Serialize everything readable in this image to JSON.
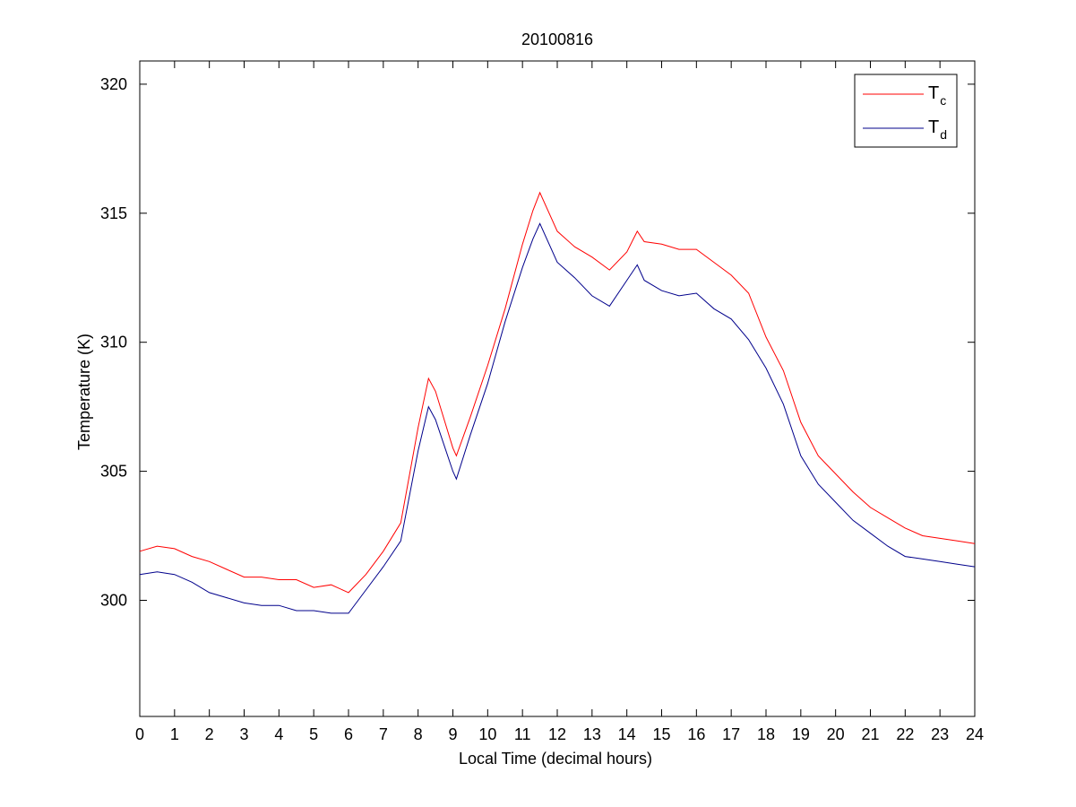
{
  "chart_data": {
    "type": "line",
    "title": "20100816",
    "xlabel": "Local Time (decimal hours)",
    "ylabel": "Temperature (K)",
    "xlim": [
      0,
      24
    ],
    "ylim": [
      295.5,
      320.9
    ],
    "x_ticks": [
      "0",
      "1",
      "2",
      "3",
      "4",
      "5",
      "6",
      "7",
      "8",
      "9",
      "10",
      "11",
      "12",
      "13",
      "14",
      "15",
      "16",
      "17",
      "18",
      "19",
      "20",
      "21",
      "22",
      "23",
      "24"
    ],
    "y_ticks": [
      "300",
      "305",
      "310",
      "315",
      "320"
    ],
    "grid": false,
    "legend_position": "top-right",
    "colors": {
      "Tc": "#ff0000",
      "Td": "#00008b"
    },
    "legend": [
      {
        "main": "T",
        "sub": "c",
        "color": "#ff0000"
      },
      {
        "main": "T",
        "sub": "d",
        "color": "#00008b"
      }
    ],
    "x": [
      0.0,
      0.5,
      1.0,
      1.5,
      2.0,
      2.5,
      3.0,
      3.5,
      4.0,
      4.5,
      5.0,
      5.5,
      6.0,
      6.5,
      7.0,
      7.5,
      8.0,
      8.3,
      8.5,
      9.0,
      9.1,
      9.5,
      10.0,
      10.5,
      11.0,
      11.3,
      11.5,
      12.0,
      12.5,
      13.0,
      13.5,
      14.0,
      14.3,
      14.5,
      15.0,
      15.5,
      16.0,
      16.5,
      17.0,
      17.5,
      18.0,
      18.5,
      19.0,
      19.5,
      20.0,
      20.5,
      21.0,
      21.5,
      22.0,
      22.5,
      23.0,
      23.5,
      24.0
    ],
    "series": [
      {
        "name": "T_c",
        "values": [
          301.9,
          302.1,
          302.0,
          301.7,
          301.5,
          301.2,
          300.9,
          300.9,
          300.8,
          300.8,
          300.5,
          300.6,
          300.3,
          301.0,
          301.9,
          303.0,
          306.7,
          308.6,
          308.1,
          305.9,
          305.6,
          307.1,
          309.1,
          311.3,
          313.8,
          315.1,
          315.8,
          314.3,
          313.7,
          313.3,
          312.8,
          313.5,
          314.3,
          313.9,
          313.8,
          313.6,
          313.6,
          313.1,
          312.6,
          311.9,
          310.2,
          308.9,
          306.9,
          305.6,
          304.9,
          304.2,
          303.6,
          303.2,
          302.8,
          302.5,
          302.4,
          302.3,
          302.2
        ]
      },
      {
        "name": "T_d",
        "values": [
          301.0,
          301.1,
          301.0,
          300.7,
          300.3,
          300.1,
          299.9,
          299.8,
          299.8,
          299.6,
          299.6,
          299.5,
          299.5,
          300.4,
          301.3,
          302.3,
          305.8,
          307.5,
          307.0,
          305.0,
          304.7,
          306.4,
          308.4,
          310.8,
          312.9,
          314.0,
          314.6,
          313.1,
          312.5,
          311.8,
          311.4,
          312.4,
          313.0,
          312.4,
          312.0,
          311.8,
          311.9,
          311.3,
          310.9,
          310.1,
          309.0,
          307.6,
          305.6,
          304.5,
          303.8,
          303.1,
          302.6,
          302.1,
          301.7,
          301.6,
          301.5,
          301.4,
          301.3
        ]
      }
    ]
  }
}
